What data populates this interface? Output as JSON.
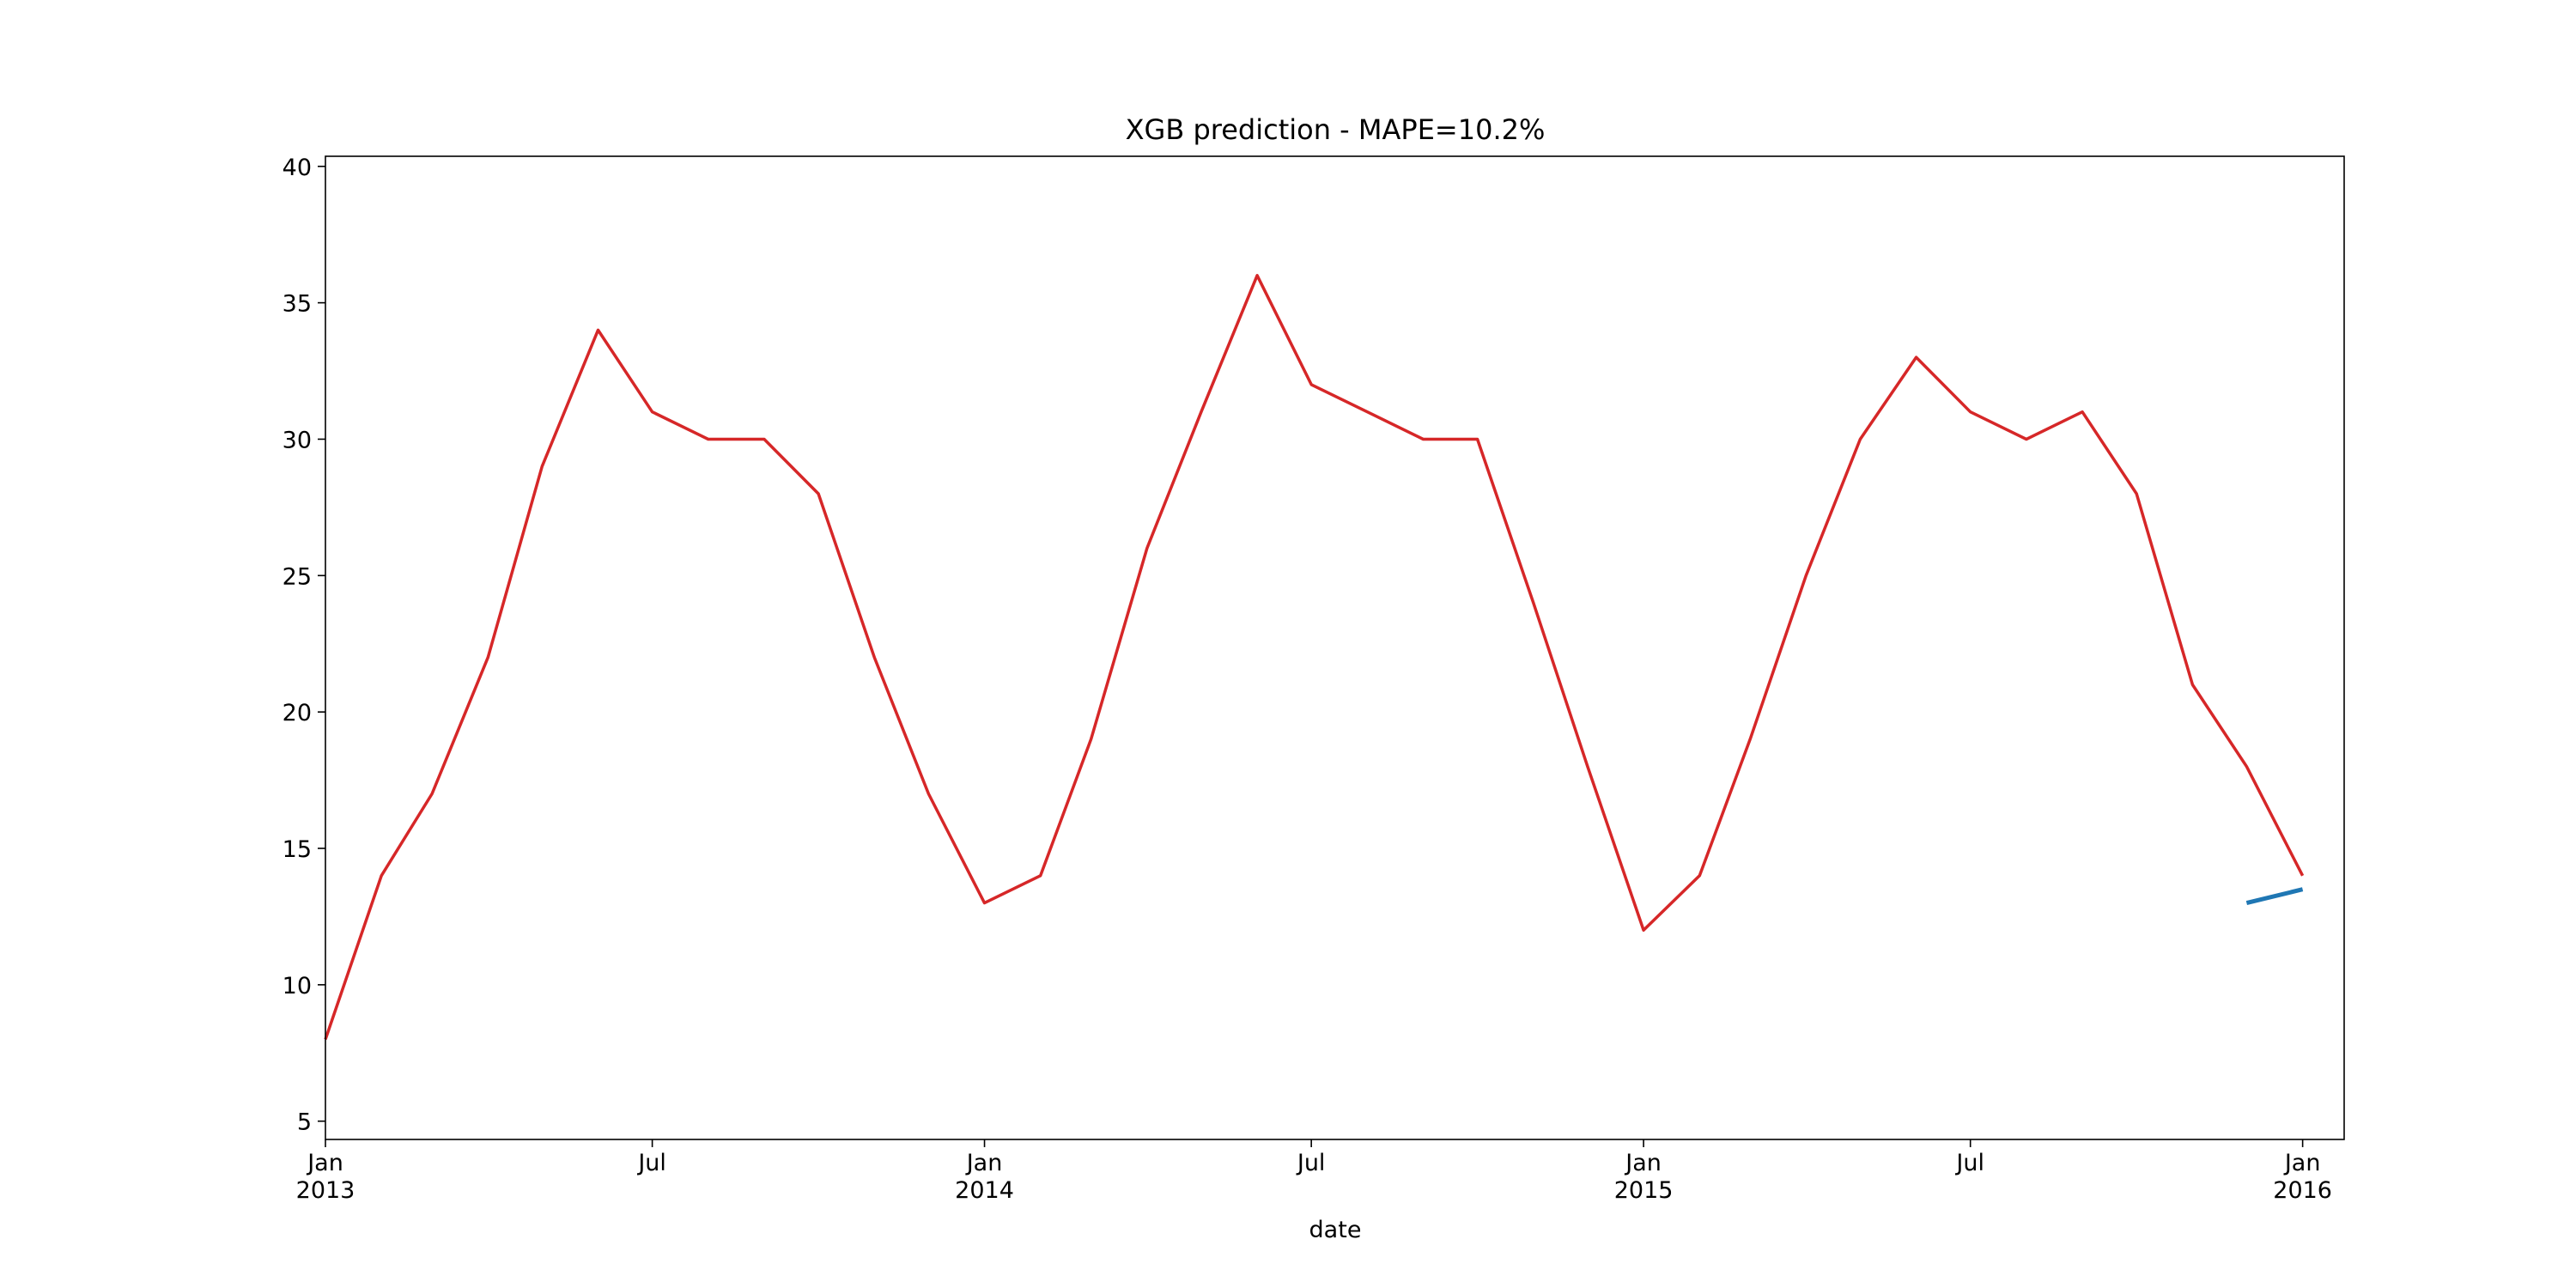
{
  "chart_data": {
    "type": "line",
    "title": "XGB prediction - MAPE=10.2%",
    "x_label": "date",
    "x": [
      "2013-01",
      "2013-02",
      "2013-03",
      "2013-04",
      "2013-05",
      "2013-06",
      "2013-07",
      "2013-08",
      "2013-09",
      "2013-10",
      "2013-11",
      "2013-12",
      "2014-01",
      "2014-02",
      "2014-03",
      "2014-04",
      "2014-05",
      "2014-06",
      "2014-07",
      "2014-08",
      "2014-09",
      "2014-10",
      "2014-11",
      "2014-12",
      "2015-01",
      "2015-02",
      "2015-03",
      "2015-04",
      "2015-05",
      "2015-06",
      "2015-07",
      "2015-08",
      "2015-09",
      "2015-10",
      "2015-11",
      "2015-12",
      "2016-01"
    ],
    "series": [
      {
        "color": "#d62728",
        "values": [
          8,
          14,
          17,
          22,
          29,
          34,
          31,
          30,
          30,
          28,
          22,
          17,
          13,
          14,
          19,
          26,
          31,
          36,
          32,
          31,
          30,
          30,
          24,
          18,
          12,
          14,
          19,
          25,
          30,
          33,
          31,
          30,
          31,
          28,
          21,
          18,
          14
        ]
      },
      {
        "color": "#1f77b4",
        "values": [
          null,
          null,
          null,
          null,
          null,
          null,
          null,
          null,
          null,
          null,
          null,
          null,
          null,
          null,
          null,
          null,
          null,
          null,
          null,
          null,
          null,
          null,
          null,
          null,
          null,
          null,
          null,
          null,
          null,
          null,
          null,
          null,
          null,
          null,
          null,
          13,
          13.5
        ]
      }
    ],
    "xlim": [
      "2013-01-01",
      "2016-01-24"
    ],
    "xticks": [
      {
        "value": "2013-01",
        "label": "Jan 2013"
      },
      {
        "value": "2013-07",
        "label": "Jul"
      },
      {
        "value": "2014-01",
        "label": "Jan 2014"
      },
      {
        "value": "2014-07",
        "label": "Jul"
      },
      {
        "value": "2015-01",
        "label": "Jan 2015"
      },
      {
        "value": "2015-07",
        "label": "Jul"
      },
      {
        "value": "2016-01",
        "label": "Jan 2016"
      }
    ],
    "ylim": [
      4.33,
      40.37
    ],
    "yticks": [
      5,
      10,
      15,
      20,
      25,
      30,
      35,
      40
    ],
    "grid": false
  }
}
